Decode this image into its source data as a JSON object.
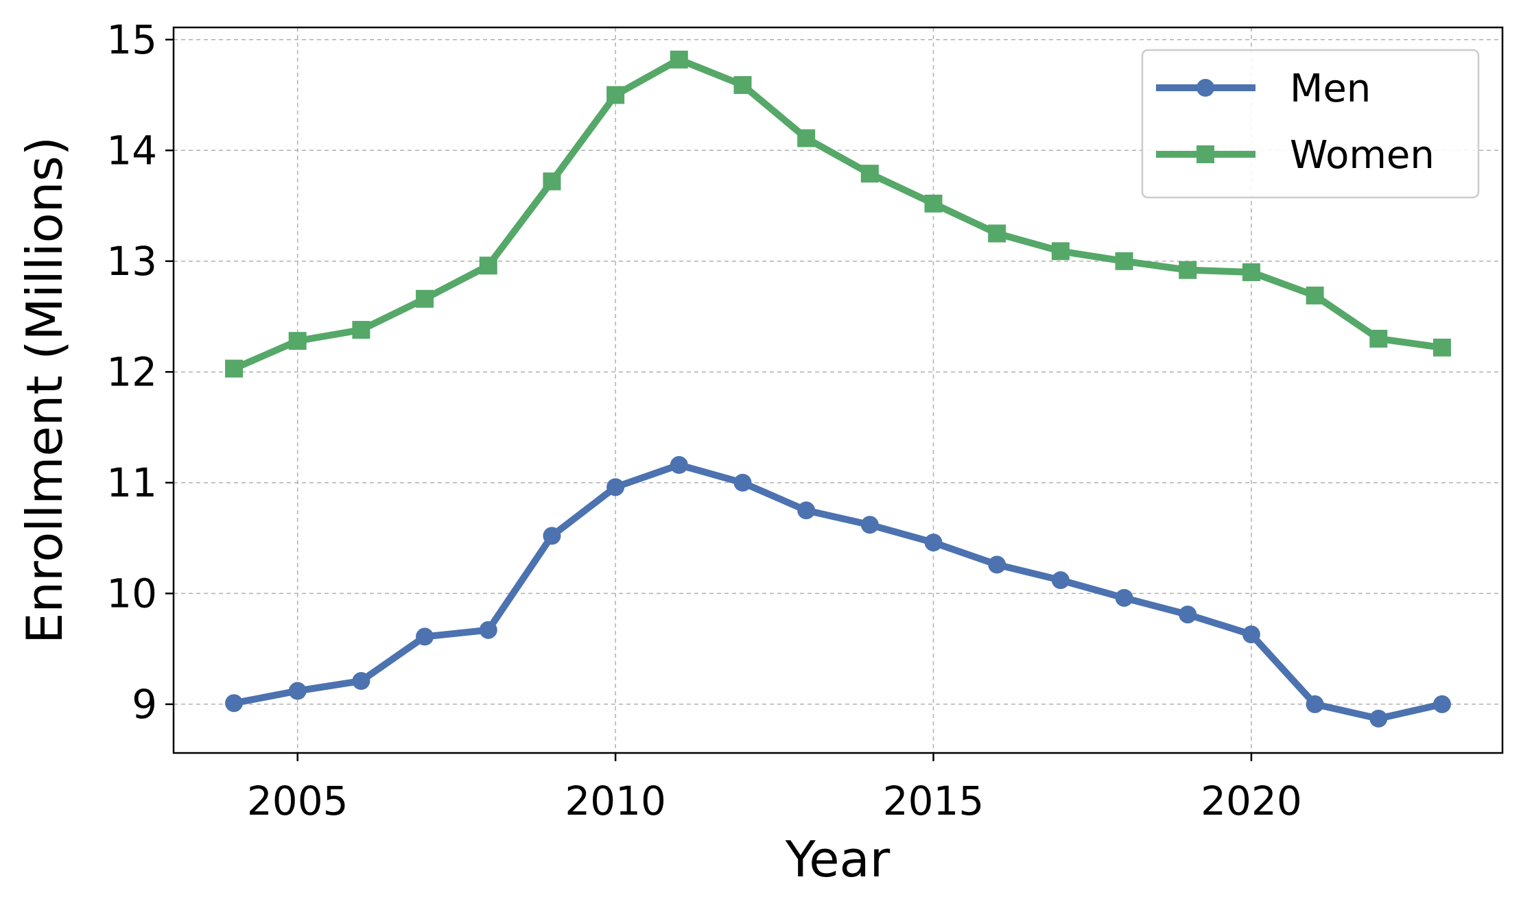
{
  "chart_data": {
    "type": "line",
    "title": "",
    "xlabel": "Year",
    "ylabel": "Enrollment (Millions)",
    "x": [
      2004,
      2005,
      2006,
      2007,
      2008,
      2009,
      2010,
      2011,
      2012,
      2013,
      2014,
      2015,
      2016,
      2017,
      2018,
      2019,
      2020,
      2021,
      2022,
      2023
    ],
    "xlim": [
      2003.05,
      2023.95
    ],
    "ylim": [
      8.56,
      15.11
    ],
    "xticks": [
      2005,
      2010,
      2015,
      2020
    ],
    "yticks": [
      9,
      10,
      11,
      12,
      13,
      14,
      15
    ],
    "grid": true,
    "legend_position": "top-right",
    "series": [
      {
        "name": "Men",
        "color": "#4c72b0",
        "marker": "circle",
        "values": [
          9.01,
          9.12,
          9.21,
          9.61,
          9.67,
          10.52,
          10.96,
          11.16,
          11.0,
          10.75,
          10.62,
          10.46,
          10.26,
          10.12,
          9.96,
          9.81,
          9.63,
          9.0,
          8.87,
          9.0
        ]
      },
      {
        "name": "Women",
        "color": "#55a868",
        "marker": "square",
        "values": [
          12.03,
          12.28,
          12.38,
          12.66,
          12.96,
          13.72,
          14.5,
          14.82,
          14.59,
          14.11,
          13.79,
          13.52,
          13.25,
          13.09,
          13.0,
          12.92,
          12.9,
          12.69,
          12.3,
          12.22
        ]
      }
    ]
  }
}
